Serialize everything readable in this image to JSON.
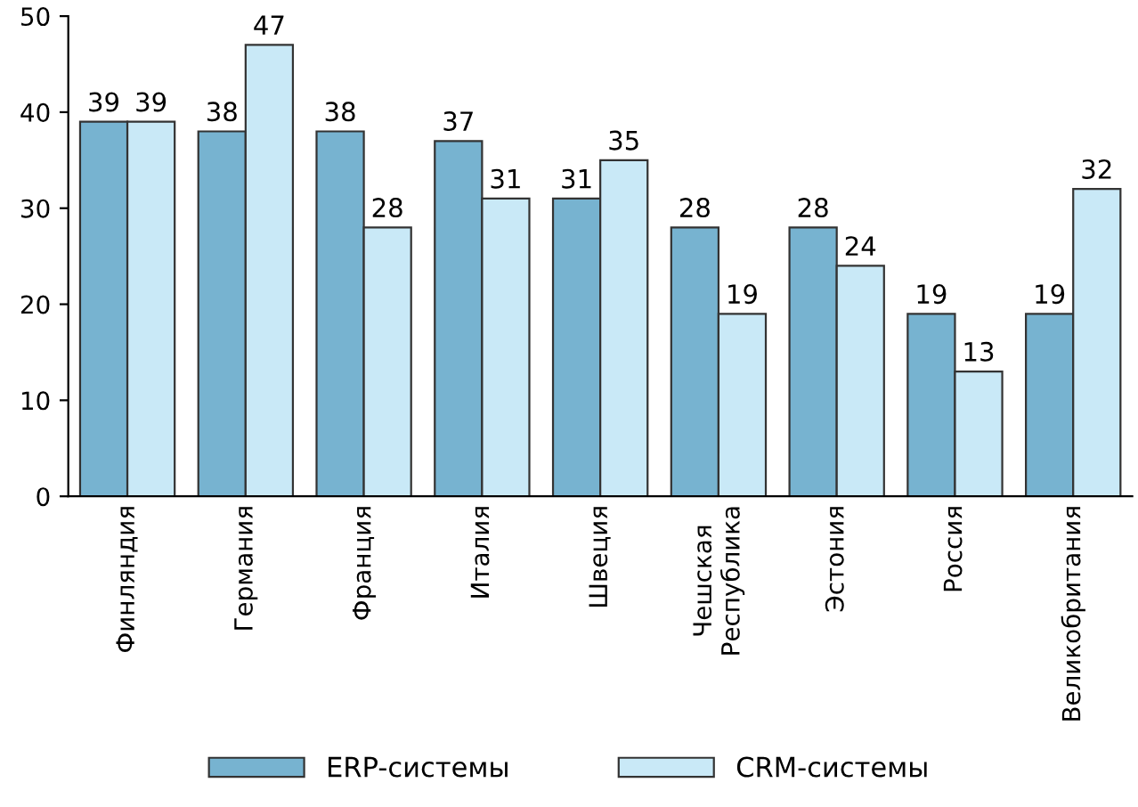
{
  "chart_data": {
    "type": "bar",
    "categories": [
      "Финляндия",
      "Германия",
      "Франция",
      "Италия",
      "Швеция",
      "Чешская\nРеспублика",
      "Эстония",
      "Россия",
      "Великобритания"
    ],
    "series": [
      {
        "name": "ERP-системы",
        "color": "#77b3d0",
        "values": [
          39,
          38,
          38,
          37,
          31,
          28,
          28,
          19,
          19
        ]
      },
      {
        "name": "CRM-системы",
        "color": "#c9e9f7",
        "values": [
          39,
          47,
          28,
          31,
          35,
          19,
          24,
          13,
          32
        ]
      }
    ],
    "ylim": [
      0,
      50
    ],
    "yticks": [
      0,
      10,
      20,
      30,
      40,
      50
    ],
    "data_labels": true,
    "grid": false,
    "legend": "bottom"
  }
}
